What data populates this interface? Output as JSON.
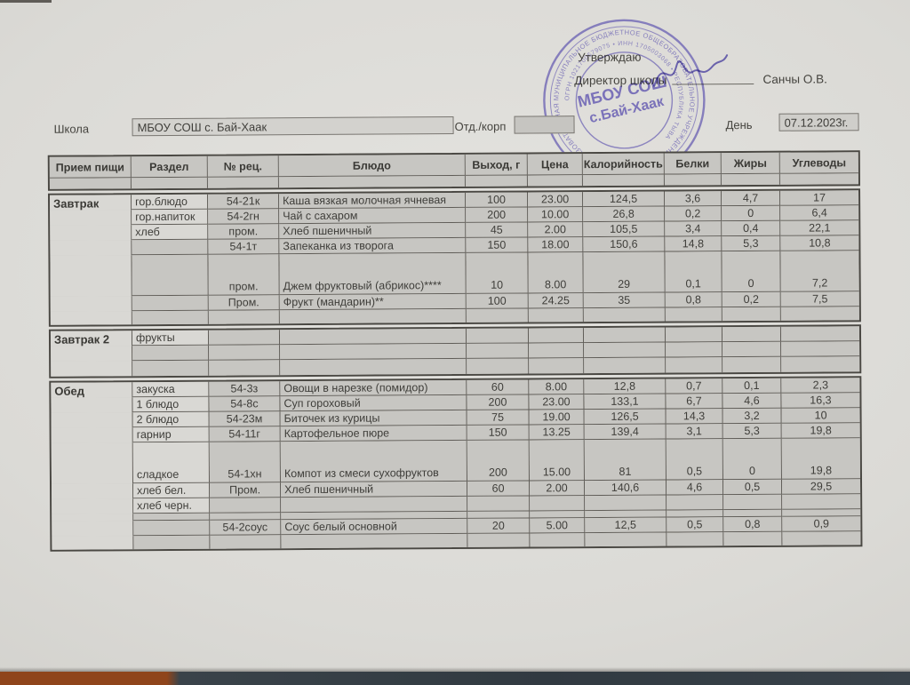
{
  "approval": {
    "approve_label": "Утверждаю",
    "director_label": "Директор школы",
    "director_name": "Санчы О.В.",
    "stamp": {
      "center_line1": "МБОУ СОШ",
      "center_line2": "с.Бай-Хаак",
      "ring_text_outer": "МУНИЦИПАЛЬНОЕ БЮДЖЕТНОЕ ОБЩЕОБРАЗОВАТЕЛЬНОЕ УЧРЕЖДЕНИЕ СРЕДНЯЯ ОБЩЕОБРАЗОВАТЕЛЬНАЯ ШКОЛА СЕЛА БАЙ-ХААК ТАНДИНСКОГО КОЖУУНА РЕСПУБЛИКИ ТЫВА",
      "ring_text_inner": "ОГРН 1021700579075 • ИНН 1705003068 • РЕСПУБЛИКА ТЫВА",
      "ink_color": "#5b50ae"
    }
  },
  "form": {
    "school_label": "Школа",
    "school_value": "МБОУ СОШ с. Бай-Хаак",
    "dept_label": "Отд./корп",
    "dept_value": "",
    "day_label": "День",
    "day_value": "07.12.2023г."
  },
  "table": {
    "columns": [
      "Прием пищи",
      "Раздел",
      "№ рец.",
      "Блюдо",
      "Выход, г",
      "Цена",
      "Калорийность",
      "Белки",
      "Жиры",
      "Углеводы"
    ],
    "sections": [
      {
        "meal": "Завтрак",
        "rows": [
          {
            "razdel": "гор.блюдо",
            "rec": "54-21к",
            "dish": "Каша вязкая молочная ячневая",
            "out": "100",
            "price": "23.00",
            "kcal": "124,5",
            "protein": "3,6",
            "fat": "4,7",
            "carbs": "17"
          },
          {
            "razdel": "гор.напиток",
            "rec": "54-2гн",
            "dish": "Чай с сахаром",
            "out": "200",
            "price": "10.00",
            "kcal": "26,8",
            "protein": "0,2",
            "fat": "0",
            "carbs": "6,4"
          },
          {
            "razdel": "хлеб",
            "rec": "пром.",
            "dish": "Хлеб пшеничный",
            "out": "45",
            "price": "2.00",
            "kcal": "105,5",
            "protein": "3,4",
            "fat": "0,4",
            "carbs": "22,1"
          },
          {
            "razdel": "",
            "rec": "54-1т",
            "dish": "Запеканка из творога",
            "out": "150",
            "price": "18.00",
            "kcal": "150,6",
            "protein": "14,8",
            "fat": "5,3",
            "carbs": "10,8"
          },
          {
            "size": "tall",
            "razdel": "",
            "rec": "пром.",
            "dish": "Джем фруктовый (абрикос)****",
            "out": "10",
            "price": "8.00",
            "kcal": "29",
            "protein": "0,1",
            "fat": "0",
            "carbs": "7,2"
          },
          {
            "razdel": "",
            "rec": "Пром.",
            "dish": "Фрукт (мандарин)**",
            "out": "100",
            "price": "24.25",
            "kcal": "35",
            "protein": "0,8",
            "fat": "0,2",
            "carbs": "7,5"
          },
          {
            "size": "e15",
            "razdel": "",
            "rec": "",
            "dish": "",
            "out": "",
            "price": "",
            "kcal": "",
            "protein": "",
            "fat": "",
            "carbs": ""
          }
        ]
      },
      {
        "meal": "Завтрак 2",
        "rows": [
          {
            "razdel": "фрукты",
            "rec": "",
            "dish": "",
            "out": "",
            "price": "",
            "kcal": "",
            "protein": "",
            "fat": "",
            "carbs": ""
          },
          {
            "razdel": "",
            "rec": "",
            "dish": "",
            "out": "",
            "price": "",
            "kcal": "",
            "protein": "",
            "fat": "",
            "carbs": ""
          },
          {
            "razdel": "",
            "rec": "",
            "dish": "",
            "out": "",
            "price": "",
            "kcal": "",
            "protein": "",
            "fat": "",
            "carbs": ""
          }
        ]
      },
      {
        "meal": "Обед",
        "rows": [
          {
            "razdel": "закуска",
            "rec": "54-3з",
            "dish": "Овощи в нарезке (помидор)",
            "out": "60",
            "price": "8.00",
            "kcal": "12,8",
            "protein": "0,7",
            "fat": "0,1",
            "carbs": "2,3"
          },
          {
            "razdel": "1 блюдо",
            "rec": "54-8с",
            "dish": "Суп гороховый",
            "out": "200",
            "price": "23.00",
            "kcal": "133,1",
            "protein": "6,7",
            "fat": "4,6",
            "carbs": "16,3"
          },
          {
            "razdel": "2 блюдо",
            "rec": "54-23м",
            "dish": "Биточек из курицы",
            "out": "75",
            "price": "19.00",
            "kcal": "126,5",
            "protein": "14,3",
            "fat": "3,2",
            "carbs": "10"
          },
          {
            "razdel": "гарнир",
            "rec": "54-11г",
            "dish": "Картофельное пюре",
            "out": "150",
            "price": "13.25",
            "kcal": "139,4",
            "protein": "3,1",
            "fat": "5,3",
            "carbs": "19,8"
          },
          {
            "size": "tall",
            "razdel": "сладкое",
            "rec": "54-1хн",
            "dish": "Компот из смеси сухофруктов",
            "out": "200",
            "price": "15.00",
            "kcal": "81",
            "protein": "0,5",
            "fat": "0",
            "carbs": "19,8"
          },
          {
            "razdel": "хлеб бел.",
            "rec": "Пром.",
            "dish": "Хлеб пшеничный",
            "out": "60",
            "price": "2.00",
            "kcal": "140,6",
            "protein": "4,6",
            "fat": "0,5",
            "carbs": "29,5"
          },
          {
            "razdel": "хлеб черн.",
            "rec": "",
            "dish": "",
            "out": "",
            "price": "",
            "kcal": "",
            "protein": "",
            "fat": "",
            "carbs": ""
          },
          {
            "size": "thin",
            "razdel": "",
            "rec": "",
            "dish": "",
            "out": "",
            "price": "",
            "kcal": "",
            "protein": "",
            "fat": "",
            "carbs": ""
          },
          {
            "razdel": "",
            "rec": "54-2соус",
            "dish": "Соус белый основной",
            "out": "20",
            "price": "5.00",
            "kcal": "12,5",
            "protein": "0,5",
            "fat": "0,8",
            "carbs": "0,9"
          },
          {
            "size": "e15",
            "razdel": "",
            "rec": "",
            "dish": "",
            "out": "",
            "price": "",
            "kcal": "",
            "protein": "",
            "fat": "",
            "carbs": ""
          }
        ]
      }
    ]
  }
}
